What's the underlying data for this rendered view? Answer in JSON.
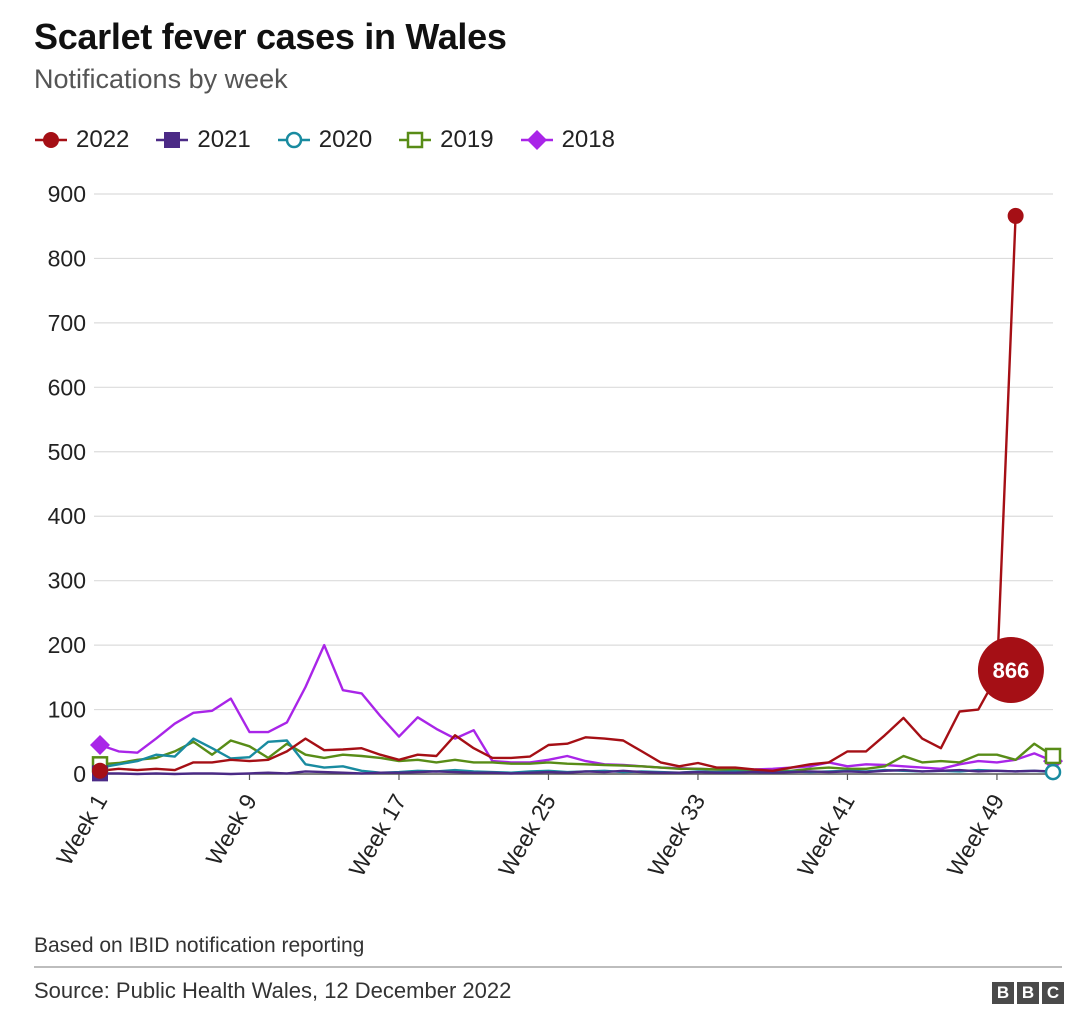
{
  "header": {
    "title": "Scarlet fever cases in Wales",
    "subtitle": "Notifications by week"
  },
  "footer": {
    "note": "Based on IBID notification reporting",
    "source": "Source: Public Health Wales, 12 December 2022",
    "logo_letters": [
      "B",
      "B",
      "C"
    ]
  },
  "chart_data": {
    "type": "line",
    "title": "Scarlet fever cases in Wales",
    "subtitle": "Notifications by week",
    "xlabel": "",
    "ylabel": "",
    "ylim": [
      0,
      900
    ],
    "yticks": [
      0,
      100,
      200,
      300,
      400,
      500,
      600,
      700,
      800,
      900
    ],
    "xticks": [
      "Week 1",
      "Week 9",
      "Week 17",
      "Week 25",
      "Week 33",
      "Week 41",
      "Week 49"
    ],
    "x": [
      1,
      2,
      3,
      4,
      5,
      6,
      7,
      8,
      9,
      10,
      11,
      12,
      13,
      14,
      15,
      16,
      17,
      18,
      19,
      20,
      21,
      22,
      23,
      24,
      25,
      26,
      27,
      28,
      29,
      30,
      31,
      32,
      33,
      34,
      35,
      36,
      37,
      38,
      39,
      40,
      41,
      42,
      43,
      44,
      45,
      46,
      47,
      48,
      49,
      50,
      51,
      52
    ],
    "grid": true,
    "legend_position": "top-left",
    "annotations": [
      {
        "series": "2022",
        "week": 49,
        "label": "866"
      }
    ],
    "series": [
      {
        "name": "2022",
        "color": "#a50f15",
        "marker": "circle",
        "values": [
          5,
          8,
          6,
          8,
          6,
          18,
          18,
          22,
          20,
          22,
          35,
          55,
          37,
          38,
          40,
          30,
          22,
          30,
          28,
          60,
          40,
          25,
          25,
          27,
          45,
          47,
          57,
          55,
          52,
          35,
          18,
          12,
          17,
          10,
          10,
          7,
          5,
          10,
          15,
          18,
          35,
          35,
          60,
          87,
          55,
          40,
          97,
          100,
          152,
          866,
          null,
          null
        ],
        "endpoints": [
          1,
          50
        ]
      },
      {
        "name": "2021",
        "color": "#4b2a86",
        "marker": "square",
        "values": [
          1,
          1,
          0,
          1,
          0,
          1,
          1,
          0,
          1,
          2,
          1,
          4,
          3,
          2,
          1,
          2,
          2,
          3,
          4,
          3,
          2,
          2,
          1,
          2,
          3,
          2,
          4,
          3,
          5,
          3,
          2,
          2,
          3,
          2,
          2,
          3,
          2,
          3,
          4,
          3,
          4,
          3,
          5,
          6,
          4,
          5,
          6,
          4,
          5,
          4,
          5,
          4
        ],
        "endpoints": [
          1
        ]
      },
      {
        "name": "2020",
        "color": "#198ba0",
        "marker": "circle-open",
        "values": [
          10,
          15,
          20,
          30,
          27,
          55,
          40,
          24,
          26,
          50,
          52,
          15,
          10,
          12,
          5,
          2,
          3,
          5,
          4,
          6,
          4,
          3,
          2,
          4,
          5,
          3,
          4,
          5,
          3,
          4,
          3,
          2,
          4,
          3,
          4,
          3,
          2,
          4,
          3,
          4,
          5,
          4,
          6,
          5,
          4,
          5,
          4,
          6,
          5,
          4,
          5,
          3
        ],
        "endpoints": [
          52
        ]
      },
      {
        "name": "2019",
        "color": "#588c17",
        "marker": "square-open",
        "values": [
          15,
          17,
          22,
          25,
          35,
          50,
          30,
          52,
          43,
          25,
          47,
          30,
          25,
          30,
          28,
          25,
          20,
          22,
          18,
          22,
          18,
          18,
          16,
          16,
          18,
          16,
          15,
          14,
          13,
          12,
          10,
          8,
          8,
          7,
          7,
          6,
          5,
          5,
          8,
          10,
          8,
          8,
          12,
          28,
          18,
          20,
          18,
          30,
          30,
          22,
          47,
          28
        ],
        "endpoints": [
          1,
          52
        ]
      },
      {
        "name": "2018",
        "color": "#a925e8",
        "marker": "diamond",
        "values": [
          45,
          35,
          33,
          55,
          78,
          95,
          98,
          117,
          65,
          65,
          80,
          135,
          200,
          130,
          125,
          90,
          58,
          88,
          70,
          55,
          68,
          20,
          18,
          18,
          22,
          28,
          20,
          15,
          14,
          12,
          10,
          9,
          8,
          7,
          6,
          7,
          8,
          10,
          12,
          18,
          12,
          15,
          14,
          12,
          10,
          8,
          15,
          20,
          18,
          22,
          32,
          20
        ],
        "endpoints": [
          1,
          52
        ]
      }
    ]
  }
}
